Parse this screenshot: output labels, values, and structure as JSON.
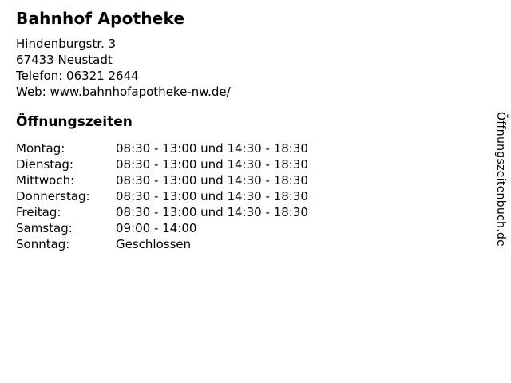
{
  "header": {
    "title": "Bahnhof Apotheke",
    "address_line1": "Hindenburgstr. 3",
    "address_line2": "67433 Neustadt",
    "phone": "Telefon: 06321 2644",
    "web": "Web: www.bahnhofapotheke-nw.de/"
  },
  "hours": {
    "heading": "Öffnungszeiten",
    "rows": [
      {
        "day": "Montag:",
        "time": "08:30 - 13:00 und 14:30 - 18:30"
      },
      {
        "day": "Dienstag:",
        "time": "08:30 - 13:00 und 14:30 - 18:30"
      },
      {
        "day": "Mittwoch:",
        "time": "08:30 - 13:00 und 14:30 - 18:30"
      },
      {
        "day": "Donnerstag:",
        "time": "08:30 - 13:00 und 14:30 - 18:30"
      },
      {
        "day": "Freitag:",
        "time": "08:30 - 13:00 und 14:30 - 18:30"
      },
      {
        "day": "Samstag:",
        "time": "09:00 - 14:00"
      },
      {
        "day": "Sonntag:",
        "time": "Geschlossen"
      }
    ]
  },
  "branding": {
    "vertical_text": "Öffnungszeitenbuch.de"
  },
  "colors": {
    "background": "#ffffff",
    "text": "#000000"
  }
}
